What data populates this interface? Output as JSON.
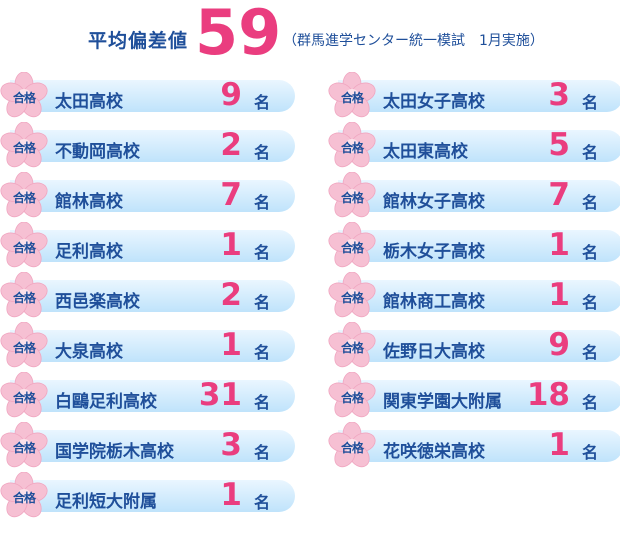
{
  "header": {
    "label": "平均偏差値",
    "value": "59",
    "note": "（群馬進学センター統一模試　1月実施）"
  },
  "badge": "合格",
  "unit": "名",
  "left": [
    {
      "school": "太田高校",
      "count": "9"
    },
    {
      "school": "不動岡高校",
      "count": "2"
    },
    {
      "school": "館林高校",
      "count": "7"
    },
    {
      "school": "足利高校",
      "count": "1"
    },
    {
      "school": "西邑楽高校",
      "count": "2"
    },
    {
      "school": "大泉高校",
      "count": "1"
    },
    {
      "school": "白鷗足利高校",
      "count": "31"
    },
    {
      "school": "国学院栃木高校",
      "count": "3"
    },
    {
      "school": "足利短大附属",
      "count": "1"
    }
  ],
  "right": [
    {
      "school": "太田女子高校",
      "count": "3"
    },
    {
      "school": "太田東高校",
      "count": "5"
    },
    {
      "school": "館林女子高校",
      "count": "7"
    },
    {
      "school": "栃木女子高校",
      "count": "1"
    },
    {
      "school": "館林商工高校",
      "count": "1"
    },
    {
      "school": "佐野日大高校",
      "count": "9"
    },
    {
      "school": "関東学園大附属",
      "count": "18"
    },
    {
      "school": "花咲徳栄高校",
      "count": "1"
    }
  ],
  "colors": {
    "accent": "#ea3d7f",
    "text": "#1f4f9a",
    "bar": "#bfe3fb",
    "sakura": "#f6c0d3"
  }
}
